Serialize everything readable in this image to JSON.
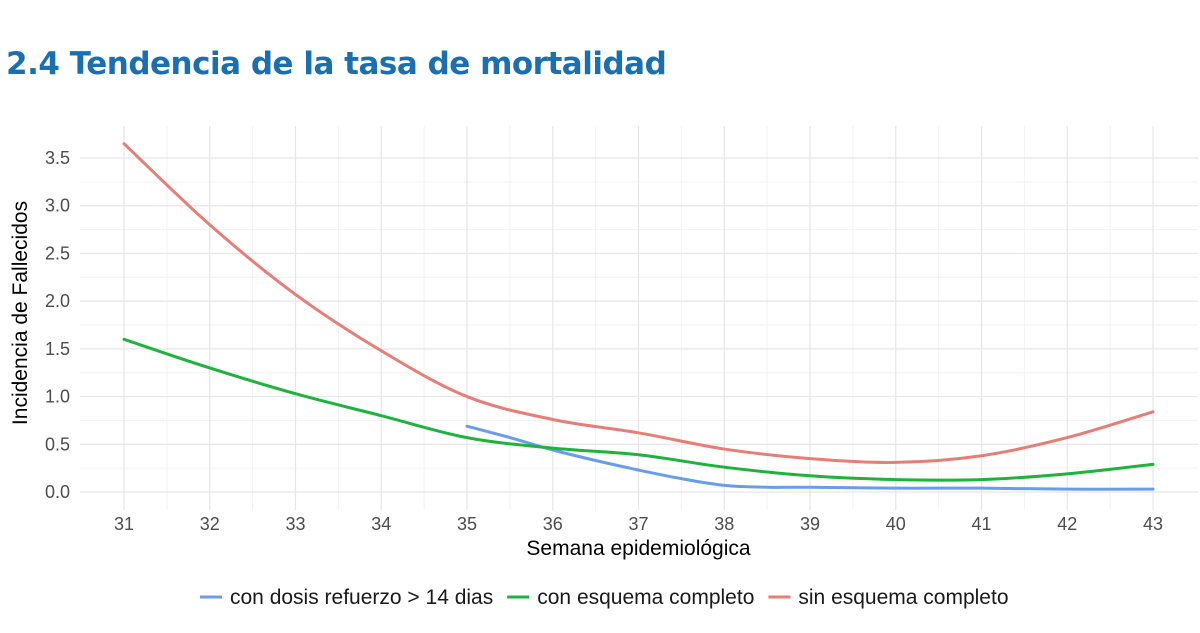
{
  "heading": "2.4 Tendencia de la tasa de mortalidad",
  "chart_data": {
    "type": "line",
    "xlabel": "Semana epidemiológica",
    "ylabel": "Incidencia de Fallecidos",
    "xlim": [
      31,
      43
    ],
    "ylim": [
      0,
      3.5
    ],
    "x_ticks": [
      31,
      32,
      33,
      34,
      35,
      36,
      37,
      38,
      39,
      40,
      41,
      42,
      43
    ],
    "y_ticks": [
      "0.0",
      "0.5",
      "1.0",
      "1.5",
      "2.0",
      "2.5",
      "3.0",
      "3.5"
    ],
    "grid": true,
    "legend_position": "bottom",
    "series": [
      {
        "name": "con dosis refuerzo > 14 dias",
        "color": "#6a9de8",
        "x": [
          35,
          35.5,
          36,
          36.5,
          37,
          37.5,
          38,
          38.5,
          39,
          40,
          41,
          42,
          43
        ],
        "y": [
          0.69,
          0.57,
          0.44,
          0.33,
          0.23,
          0.14,
          0.07,
          0.05,
          0.05,
          0.04,
          0.04,
          0.03,
          0.03
        ]
      },
      {
        "name": "con esquema completo",
        "color": "#1db33c",
        "x": [
          31,
          32,
          33,
          34,
          35,
          36,
          37,
          38,
          39,
          40,
          41,
          42,
          43
        ],
        "y": [
          1.6,
          1.3,
          1.03,
          0.8,
          0.57,
          0.46,
          0.39,
          0.26,
          0.17,
          0.13,
          0.13,
          0.19,
          0.29
        ]
      },
      {
        "name": "sin esquema completo",
        "color": "#e67e76",
        "x": [
          31,
          32,
          33,
          34,
          35,
          36,
          37,
          38,
          39,
          40,
          41,
          42,
          43
        ],
        "y": [
          3.65,
          2.8,
          2.07,
          1.48,
          1.0,
          0.76,
          0.62,
          0.45,
          0.35,
          0.31,
          0.38,
          0.57,
          0.84
        ]
      }
    ]
  }
}
